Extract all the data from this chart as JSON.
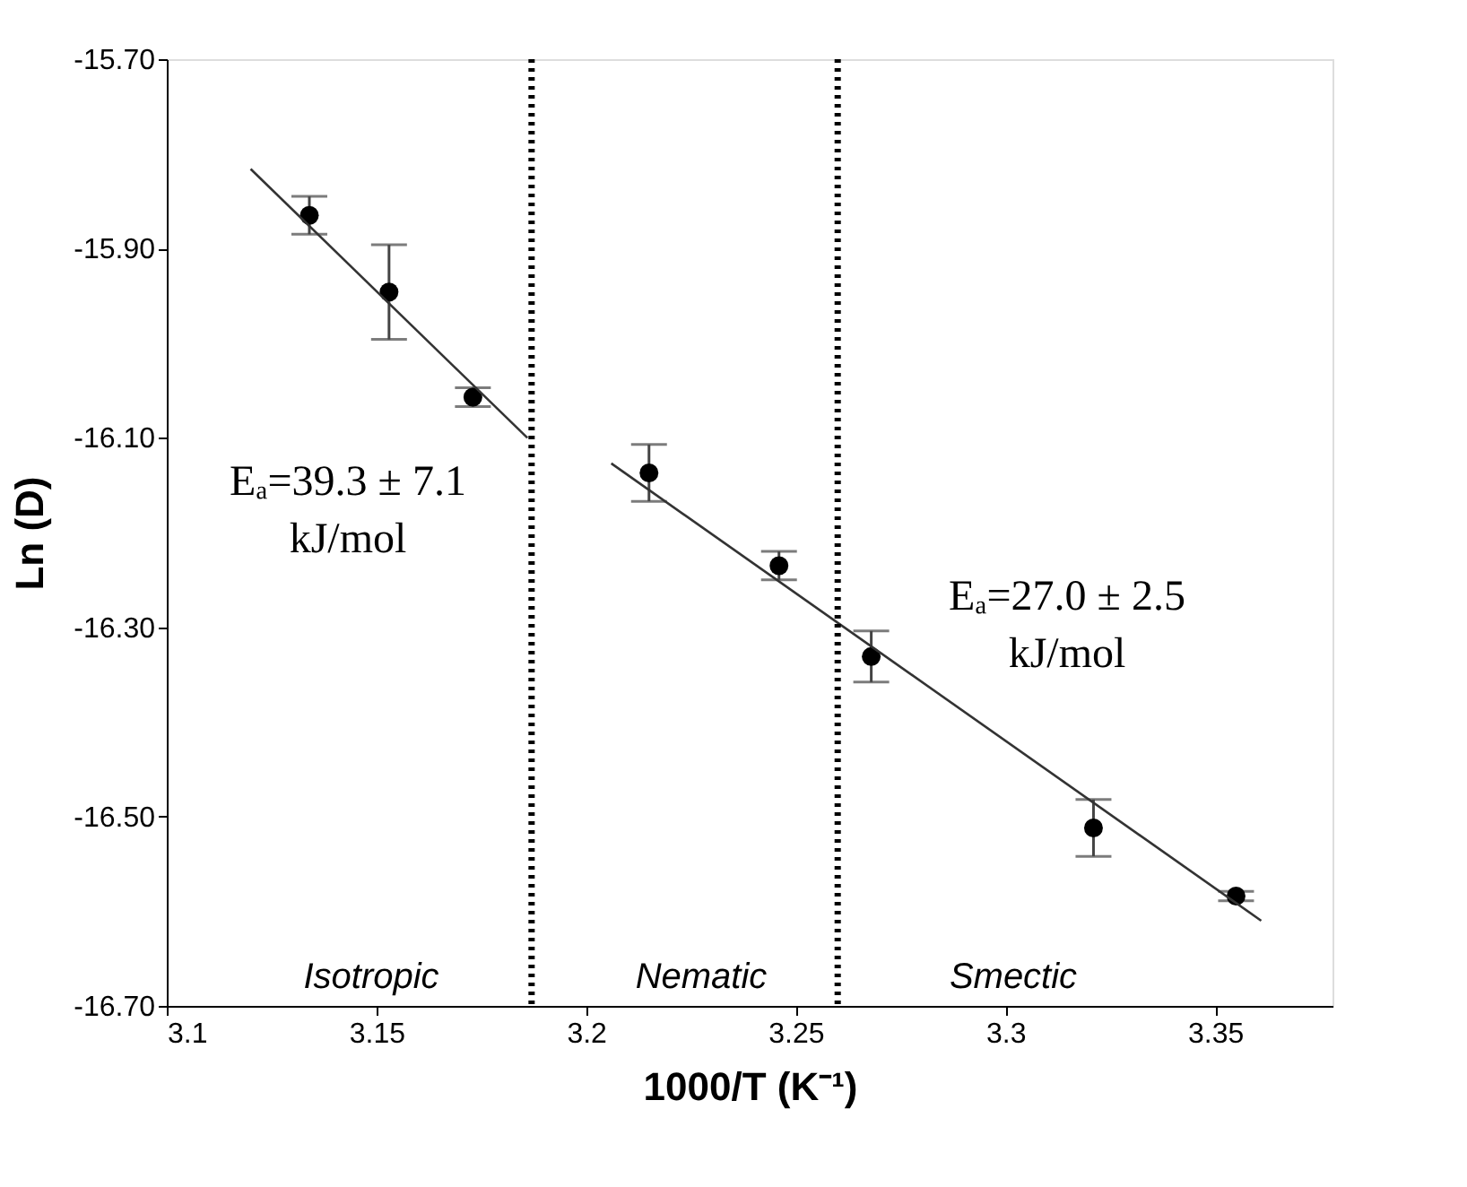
{
  "chart_data": {
    "type": "scatter",
    "xlabel": "1000/T (K⁻¹)",
    "ylabel": "Ln (D)",
    "xlim": [
      3.1,
      3.378
    ],
    "xticks": [
      3.1,
      3.15,
      3.2,
      3.25,
      3.3,
      3.35
    ],
    "ylim": [
      -16.7,
      -15.7
    ],
    "yticks": [
      {
        "value": -16.7,
        "label": "-16.70"
      },
      {
        "value": -16.5,
        "label": "-16.50"
      },
      {
        "value": -16.3,
        "label": "-16.30"
      },
      {
        "value": -16.1,
        "label": "-16.10"
      },
      {
        "value": -15.9,
        "label": "-15.90"
      },
      {
        "value": -15.7,
        "label": "-15.70"
      }
    ],
    "grid": false,
    "series": [
      {
        "color": "#000000",
        "marker": "circle",
        "x": [
          3.134,
          3.153,
          3.173,
          3.215,
          3.246,
          3.268,
          3.321,
          3.355
        ],
        "values": [
          -15.865,
          -15.946,
          -16.057,
          -16.137,
          -16.235,
          -16.331,
          -16.512,
          -16.584
        ],
        "errors": [
          0.02,
          0.05,
          0.01,
          0.03,
          0.015,
          0.027,
          0.03,
          0.005
        ]
      },
      {
        "type": "line",
        "color": "#333333",
        "x": [
          3.12,
          3.186
        ],
        "values": [
          -15.816,
          -16.1
        ]
      },
      {
        "type": "line",
        "color": "#333333",
        "x": [
          3.206,
          3.361
        ],
        "values": [
          -16.127,
          -16.61
        ]
      }
    ],
    "ref_lines": [
      {
        "axis": "x",
        "value": 3.187,
        "color": "#000000",
        "line_style": "dotted"
      },
      {
        "axis": "x",
        "value": 3.26,
        "color": "#000000",
        "line_style": "dotted"
      }
    ],
    "annotations": [
      "Eₐ=39.3 ± 7.1\nkJ/mol",
      "Eₐ=27.0 ± 2.5\nkJ/mol",
      "Isotropic",
      "Nematic",
      "Smectic"
    ]
  }
}
